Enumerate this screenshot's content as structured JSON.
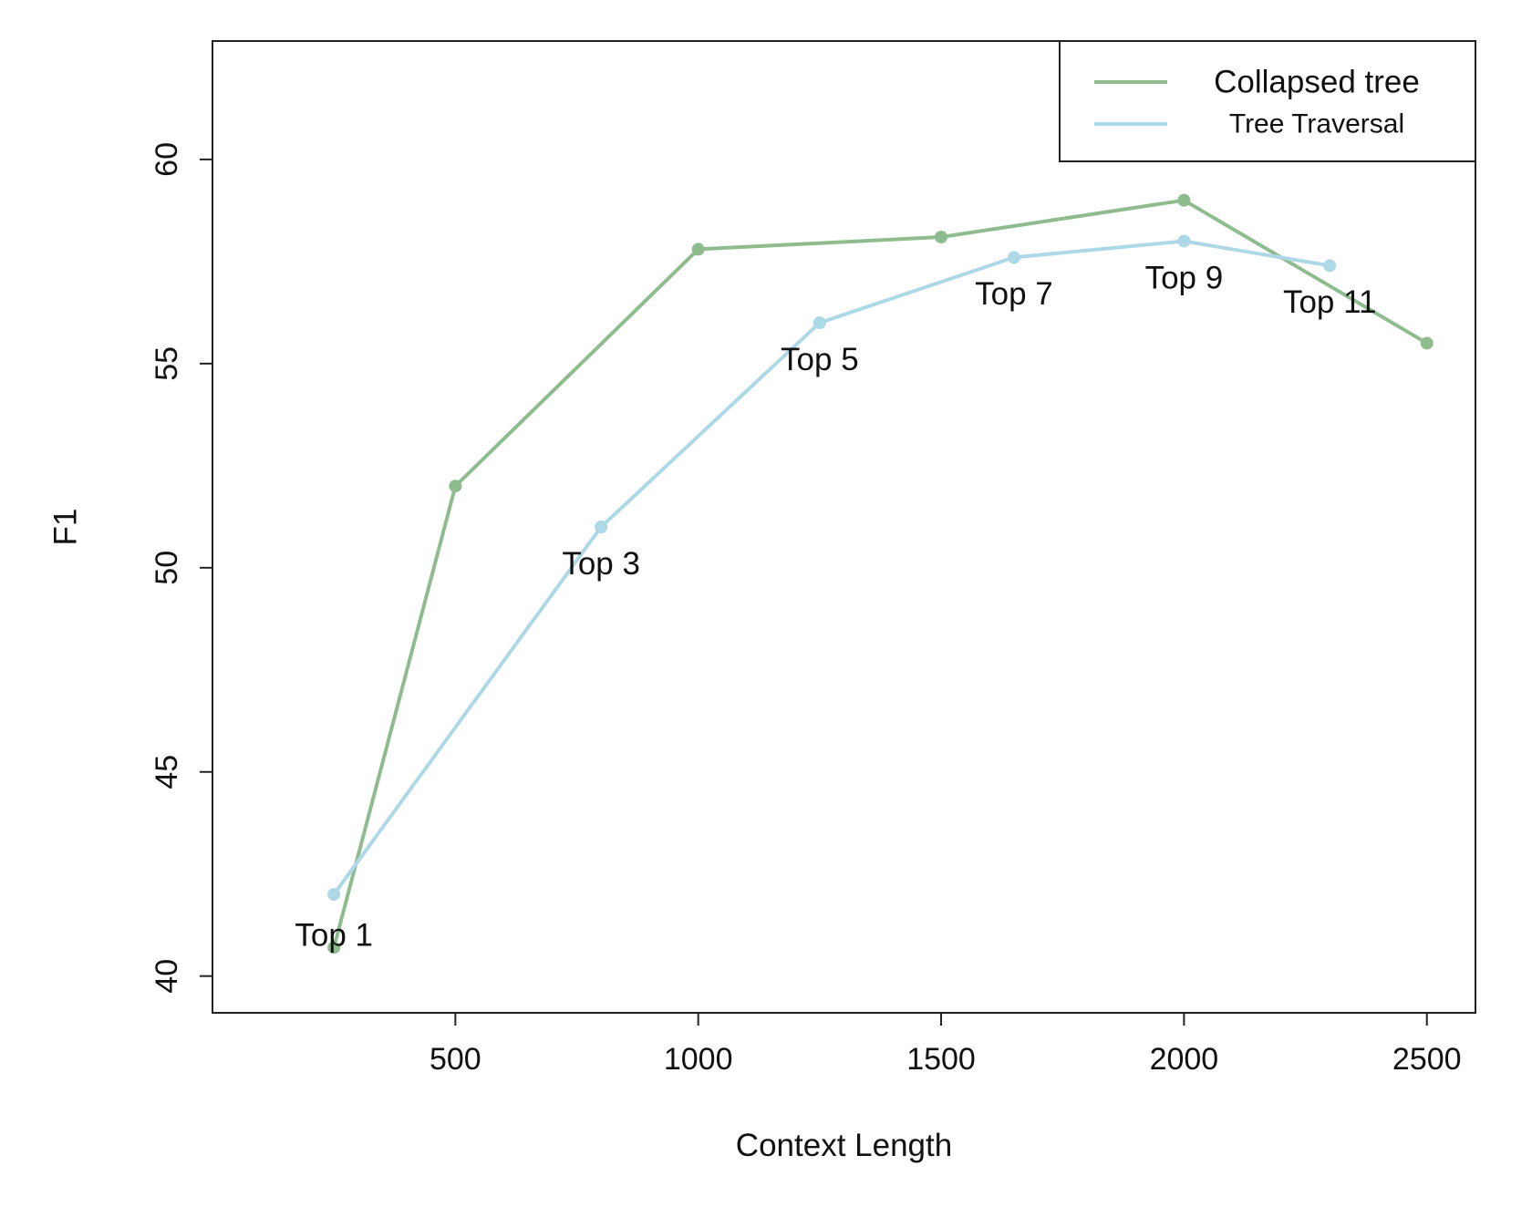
{
  "chart_data": {
    "type": "line",
    "title": "",
    "xlabel": "Context Length",
    "ylabel": "F1",
    "xlim": [
      0,
      2600
    ],
    "ylim": [
      39.1,
      62.9
    ],
    "xticks": [
      500,
      1000,
      1500,
      2000,
      2500
    ],
    "yticks": [
      40,
      45,
      50,
      55,
      60
    ],
    "grid": false,
    "legend_position": "top-right",
    "series": [
      {
        "name": "Collapsed tree",
        "color": "#8fbc8f",
        "x": [
          250,
          500,
          1000,
          1500,
          2000,
          2500
        ],
        "y": [
          40.7,
          52.0,
          57.8,
          58.1,
          59.0,
          55.5
        ]
      },
      {
        "name": "Tree Traversal",
        "color": "#add8e6",
        "x": [
          250,
          800,
          1250,
          1650,
          2000,
          2300
        ],
        "y": [
          42.0,
          51.0,
          56.0,
          57.6,
          58.0,
          57.4
        ]
      }
    ],
    "annotations": [
      {
        "text": "Top 1",
        "x": 250,
        "y": 41.0
      },
      {
        "text": "Top 3",
        "x": 800,
        "y": 50.1
      },
      {
        "text": "Top 5",
        "x": 1250,
        "y": 55.1
      },
      {
        "text": "Top 7",
        "x": 1650,
        "y": 56.7
      },
      {
        "text": "Top 9",
        "x": 2000,
        "y": 57.1
      },
      {
        "text": "Top 11",
        "x": 2300,
        "y": 56.5
      }
    ]
  }
}
